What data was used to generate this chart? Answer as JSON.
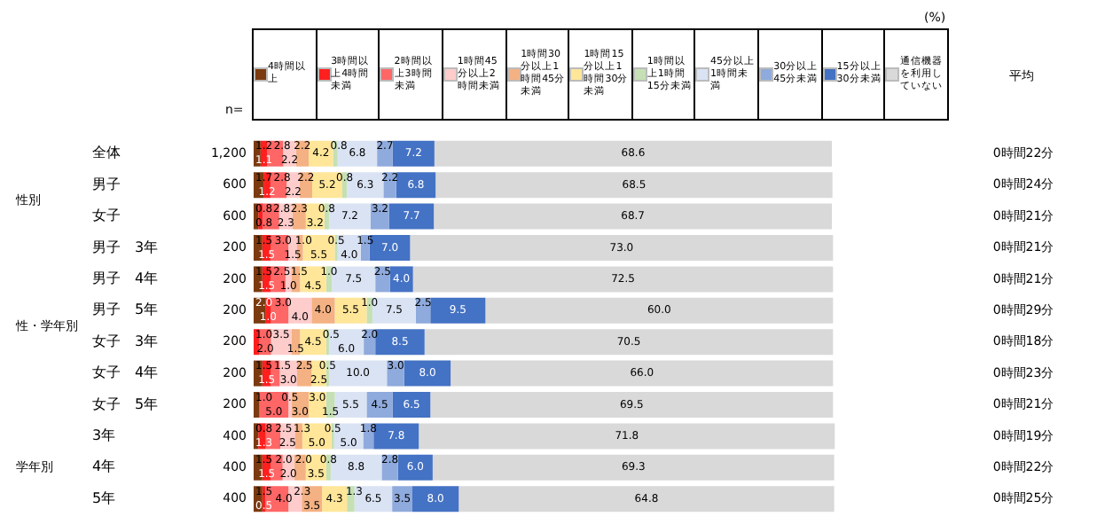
{
  "chart_data": {
    "type": "bar",
    "orientation": "horizontal",
    "stacked": true,
    "data_labels": true,
    "legend": "top",
    "tick_labels": "y",
    "categories": [
      "全体",
      "男子",
      "女子",
      "男子　3年",
      "男子　4年",
      "男子　5年",
      "女子　3年",
      "女子　4年",
      "女子　5年",
      "3年",
      "4年",
      "5年"
    ],
    "series": [
      {
        "name": "4時間以上",
        "color": "#7b3a10",
        "values": [
          1.2,
          1.7,
          0.8,
          1.5,
          1.5,
          2.0,
          null,
          1.5,
          1.0,
          0.8,
          1.5,
          1.5
        ],
        "value_labels": [
          "1.2",
          "1.7",
          "0.8",
          "1.5",
          "1.5",
          "2.0",
          null,
          "1.5",
          "1.0",
          "0.8",
          "1.5",
          "1.5"
        ]
      },
      {
        "name": "3時間以上4時間未満",
        "color": "#ff1f1f",
        "values": [
          1.1,
          1.2,
          0.8,
          1.5,
          1.5,
          1.0,
          1.0,
          1.5,
          null,
          1.3,
          1.5,
          0.5
        ],
        "value_labels": [
          "1.1",
          "1.2",
          "0.8",
          "1.5",
          "1.5",
          "1.0",
          "1.0",
          "1.5",
          null,
          "1.3",
          "1.5",
          "0.5"
        ]
      },
      {
        "name": "2時間以上3時間未満",
        "color": "#ff6666",
        "values": [
          2.8,
          2.8,
          2.8,
          3.0,
          2.5,
          3.0,
          2.0,
          1.5,
          5.0,
          2.5,
          2.0,
          4.0
        ],
        "value_labels": [
          "2.8",
          "2.8",
          "2.8",
          "3.0",
          "2.5",
          "3.0",
          "2.0",
          "1.5",
          "5.0",
          "2.5",
          "2.0",
          "4.0"
        ]
      },
      {
        "name": "1時間45分以上2時間未満",
        "color": "#ffcccc",
        "values": [
          2.2,
          2.2,
          2.3,
          1.5,
          1.0,
          4.0,
          3.5,
          3.0,
          0.5,
          2.5,
          2.0,
          2.3
        ],
        "value_labels": [
          "2.2",
          "2.2",
          "2.3",
          "1.5",
          "1.0",
          "4.0",
          "3.5",
          "3.0",
          "0.5",
          "2.5",
          "2.0",
          "2.3"
        ]
      },
      {
        "name": "1時間30分以上1時間45分未満",
        "color": "#f4b183",
        "values": [
          2.2,
          2.2,
          2.3,
          1.0,
          1.5,
          4.0,
          1.5,
          2.5,
          3.0,
          1.3,
          2.0,
          3.5
        ],
        "value_labels": [
          "2.2",
          "2.2",
          "2.3",
          "1.0",
          "1.5",
          "4.0",
          "1.5",
          "2.5",
          "3.0",
          "1.3",
          "2.0",
          "3.5"
        ]
      },
      {
        "name": "1時間15分以上1時間30分未満",
        "color": "#ffe699",
        "values": [
          4.2,
          5.2,
          3.2,
          5.5,
          4.5,
          5.5,
          4.5,
          2.5,
          3.0,
          5.0,
          3.5,
          4.3
        ],
        "value_labels": [
          "4.2",
          "5.2",
          "3.2",
          "5.5",
          "4.5",
          "5.5",
          "4.5",
          "2.5",
          "3.0",
          "5.0",
          "3.5",
          "4.3"
        ]
      },
      {
        "name": "1時間以上1時間15分未満",
        "color": "#c5e0b4",
        "values": [
          0.8,
          0.8,
          0.8,
          0.5,
          1.0,
          1.0,
          0.5,
          0.5,
          1.5,
          0.5,
          0.8,
          1.3
        ],
        "value_labels": [
          "0.8",
          "0.8",
          "0.8",
          "0.5",
          "1.0",
          "1.0",
          "0.5",
          "0.5",
          "1.5",
          "0.5",
          "0.8",
          "1.3"
        ]
      },
      {
        "name": "45分以上1時間未満",
        "color": "#dae3f3",
        "values": [
          6.8,
          6.3,
          7.2,
          4.0,
          7.5,
          7.5,
          6.0,
          10.0,
          5.5,
          5.0,
          8.8,
          6.5
        ],
        "value_labels": [
          "6.8",
          "6.3",
          "7.2",
          "4.0",
          "7.5",
          "7.5",
          "6.0",
          "10.0",
          "5.5",
          "5.0",
          "8.8",
          "6.5"
        ]
      },
      {
        "name": "30分以上45分未満",
        "color": "#8faadc",
        "values": [
          2.7,
          2.2,
          3.2,
          1.5,
          2.5,
          2.5,
          2.0,
          3.0,
          4.5,
          1.8,
          2.8,
          3.5
        ],
        "value_labels": [
          "2.7",
          "2.2",
          "3.2",
          "1.5",
          "2.5",
          "2.5",
          "2.0",
          "3.0",
          "4.5",
          "1.8",
          "2.8",
          "3.5"
        ]
      },
      {
        "name": "15分以上30分未満",
        "color": "#4472c4",
        "values": [
          7.2,
          6.8,
          7.7,
          7.0,
          4.0,
          9.5,
          8.5,
          8.0,
          6.5,
          7.8,
          6.0,
          8.0
        ],
        "value_labels": [
          "7.2",
          "6.8",
          "7.7",
          "7.0",
          "4.0",
          "9.5",
          "8.5",
          "8.0",
          "6.5",
          "7.8",
          "6.0",
          "8.0"
        ]
      },
      {
        "name": "通信機器を利用していない",
        "color": "#d9d9d9",
        "values": [
          68.6,
          68.5,
          68.7,
          73.0,
          72.5,
          60.0,
          70.5,
          66.0,
          69.5,
          71.8,
          69.3,
          64.8
        ],
        "value_labels": [
          "68.6",
          "68.5",
          "68.7",
          "73.0",
          "72.5",
          "60.0",
          "70.5",
          "66.0",
          "69.5",
          "71.8",
          "69.3",
          "64.8"
        ]
      }
    ],
    "annotations": [
      "(%)",
      "n=",
      "平均",
      "性別",
      "性・学年別",
      "学年別",
      "1,200",
      "600",
      "600",
      "200",
      "200",
      "200",
      "200",
      "200",
      "200",
      "400",
      "400",
      "400",
      "0時間22分",
      "0時間24分",
      "0時間21分",
      "0時間21分",
      "0時間21分",
      "0時間29分",
      "0時間18分",
      "0時間23分",
      "0時間21分",
      "0時間19分",
      "0時間22分",
      "0時間25分"
    ]
  }
}
